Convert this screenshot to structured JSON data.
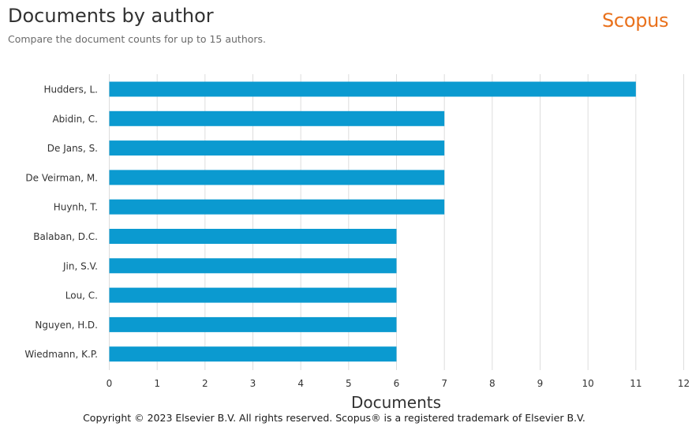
{
  "header": {
    "title": "Documents by author",
    "subtitle": "Compare the document counts for up to 15 authors.",
    "logo_text": "Scopus"
  },
  "footer": {
    "copyright": "Copyright © 2023 Elsevier B.V. All rights reserved. Scopus® is a registered trademark of Elsevier B.V."
  },
  "colors": {
    "bar": "#0b9ad0",
    "logo": "#e9711c",
    "grid": "#dddddd"
  },
  "chart_data": {
    "type": "bar",
    "orientation": "horizontal",
    "categories": [
      "Hudders, L.",
      "Abidin, C.",
      "De Jans, S.",
      "De Veirman, M.",
      "Huynh, T.",
      "Balaban, D.C.",
      "Jin, S.V.",
      "Lou, C.",
      "Nguyen, H.D.",
      "Wiedmann, K.P."
    ],
    "values": [
      11,
      7,
      7,
      7,
      7,
      6,
      6,
      6,
      6,
      6
    ],
    "xlabel": "Documents",
    "ylabel": "",
    "xlim": [
      0,
      12
    ],
    "xticks": [
      0,
      1,
      2,
      3,
      4,
      5,
      6,
      7,
      8,
      9,
      10,
      11,
      12
    ],
    "grid": true
  }
}
